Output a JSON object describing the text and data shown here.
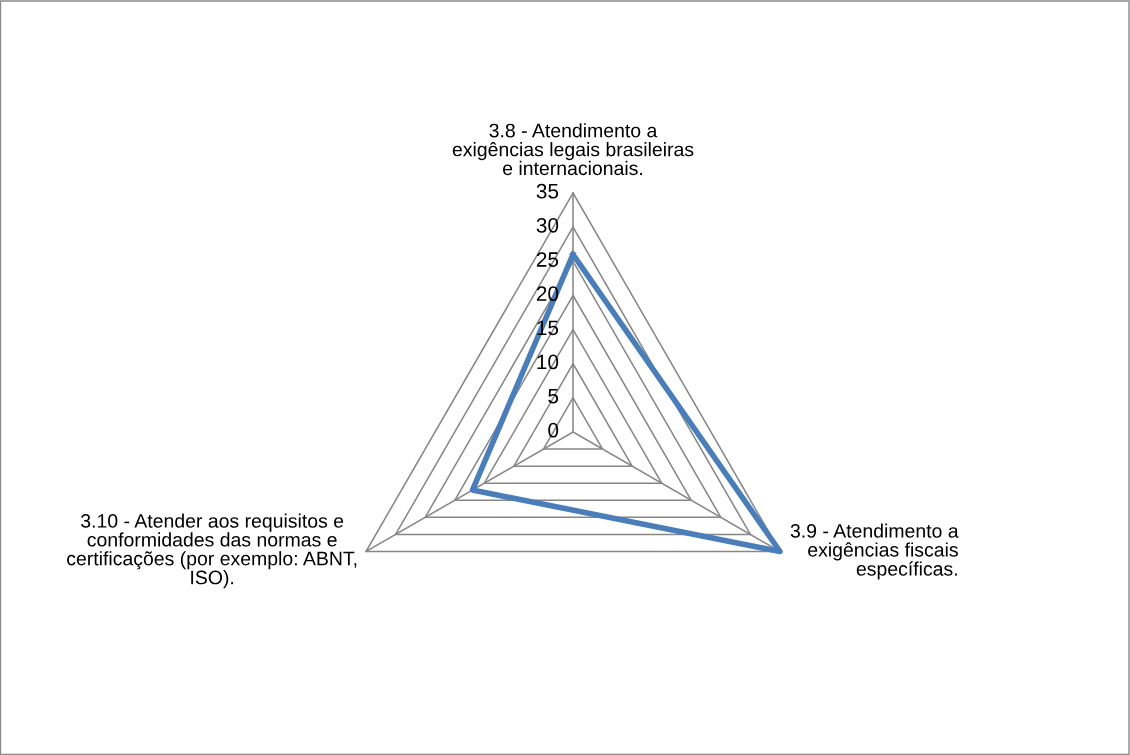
{
  "chart_data": {
    "type": "radar",
    "categories": [
      "3.8 - Atendimento a exigências legais brasileiras e internacionais.",
      "3.9 - Atendimento a exigências fiscais específicas.",
      "3.10 - Atender aos requisitos e conformidades das normas e certificações (por exemplo: ABNT, ISO)."
    ],
    "series": [
      {
        "color": "#4a7ebb",
        "values": [
          26,
          35,
          17
        ]
      }
    ],
    "ylim": [
      0,
      35
    ],
    "yticks": [
      0,
      5,
      10,
      15,
      20,
      25,
      30,
      35
    ],
    "grid": true,
    "marker": "none",
    "line_style": "solid"
  }
}
